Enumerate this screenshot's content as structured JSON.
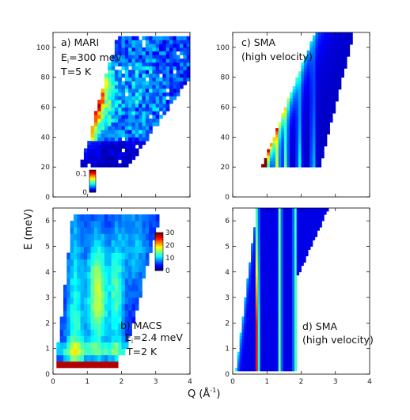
{
  "figure": {
    "ylabel": "E (meV)",
    "xlabel_main": "Q (Å",
    "xlabel_sup": "-1",
    "xlabel_close": ")"
  },
  "colors": {
    "colormap": "jet",
    "background_bin": "#00007f"
  },
  "chart_data": [
    {
      "id": "a",
      "type": "heatmap",
      "colormap": "jet",
      "xlim": [
        0,
        4
      ],
      "ylim": [
        0,
        110
      ],
      "xticks": [
        "0",
        "1",
        "2",
        "3",
        "4"
      ],
      "show_xtick_labels": false,
      "yticks": [
        "0",
        "20",
        "40",
        "60",
        "80",
        "100"
      ],
      "label_lines": [
        "a) MARI",
        "E",
        "i",
        "=300 meV",
        "T=5 K"
      ],
      "colorbar": {
        "ticks": [
          "0",
          "0.1"
        ],
        "range": [
          0,
          0.12
        ]
      },
      "model": "mari",
      "bins": {
        "nx": 40,
        "ny": 36,
        "emin": 20,
        "emax": 110
      }
    },
    {
      "id": "c",
      "type": "heatmap",
      "colormap": "jet",
      "xlim": [
        0,
        4
      ],
      "ylim": [
        0,
        110
      ],
      "xticks": [
        "0",
        "1",
        "2",
        "3",
        "4"
      ],
      "show_xtick_labels": false,
      "yticks": [
        "0",
        "20",
        "40",
        "60",
        "80",
        "100"
      ],
      "label_lines": [
        "c) SMA",
        "(high velocity)"
      ],
      "model": "sma_high",
      "bins": {
        "nx": 48,
        "ny": 45,
        "emin": 20,
        "emax": 110
      }
    },
    {
      "id": "b",
      "type": "heatmap",
      "colormap": "jet",
      "xlim": [
        0,
        4
      ],
      "ylim": [
        0,
        6.5
      ],
      "xticks": [
        "0",
        "1",
        "2",
        "3",
        "4"
      ],
      "show_xtick_labels": true,
      "yticks": [
        "0",
        "1",
        "2",
        "3",
        "4",
        "5",
        "6"
      ],
      "label_lines": [
        "b) MACS",
        "E",
        "i",
        "=2.4 meV",
        "T=2 K"
      ],
      "colorbar": {
        "ticks": [
          "0",
          "10",
          "20",
          "30"
        ],
        "range": [
          0,
          30
        ]
      },
      "model": "macs",
      "bins": {
        "nx": 40,
        "ny": 26,
        "emin": 0,
        "emax": 6.5
      }
    },
    {
      "id": "d",
      "type": "heatmap",
      "colormap": "jet",
      "xlim": [
        0,
        4
      ],
      "ylim": [
        0,
        6.5
      ],
      "xticks": [
        "0",
        "1",
        "2",
        "3",
        "4"
      ],
      "show_xtick_labels": true,
      "yticks": [
        "0",
        "1",
        "2",
        "3",
        "4",
        "5",
        "6"
      ],
      "label_lines": [
        "d) SMA",
        "(high velocity)"
      ],
      "model": "sma_low",
      "bins": {
        "nx": 60,
        "ny": 52,
        "emin": 0,
        "emax": 6.5
      }
    }
  ]
}
